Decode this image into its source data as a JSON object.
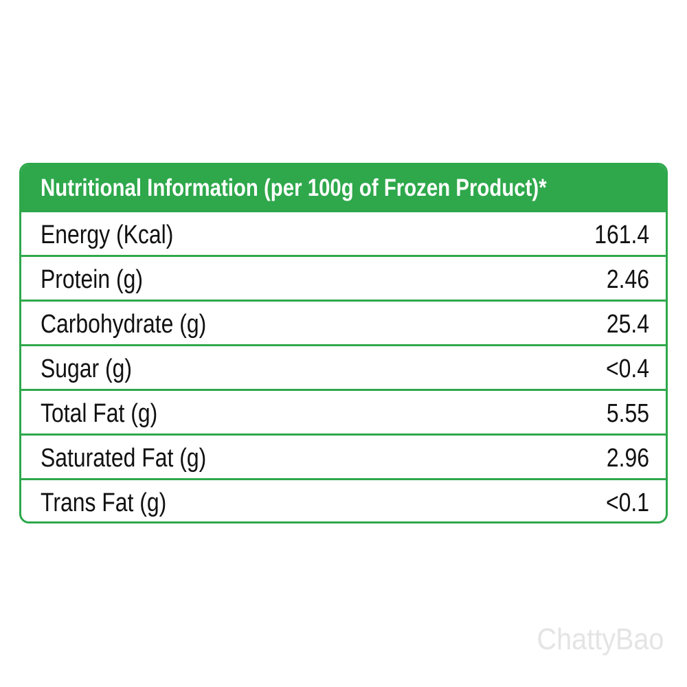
{
  "table": {
    "title": "Nutritional Information (per 100g of Frozen Product)*",
    "rows": [
      [
        "Energy (Kcal)",
        "161.4"
      ],
      [
        "Protein (g)",
        "2.46"
      ],
      [
        "Carbohydrate (g)",
        "25.4"
      ],
      [
        "Sugar (g)",
        "<0.4"
      ],
      [
        "Total Fat (g)",
        "5.55"
      ],
      [
        "Saturated Fat (g)",
        "2.96"
      ],
      [
        "Trans Fat (g)",
        "<0.1"
      ]
    ]
  },
  "watermark": "ChattyBao"
}
